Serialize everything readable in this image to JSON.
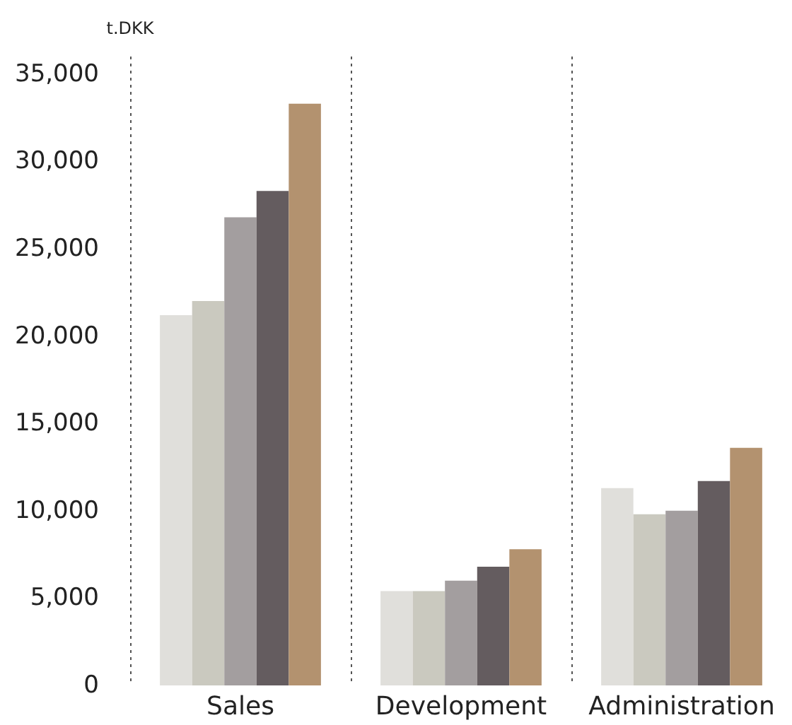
{
  "chart_data": {
    "type": "bar",
    "ylabel": "t.DKK",
    "categories": [
      "Sales",
      "Development",
      "Administration"
    ],
    "series": [
      {
        "color": "#e0dfdb",
        "values": [
          21200,
          5400,
          11300
        ]
      },
      {
        "color": "#cac9bf",
        "values": [
          22000,
          5400,
          9800
        ]
      },
      {
        "color": "#a39e9f",
        "values": [
          26800,
          6000,
          10000
        ]
      },
      {
        "color": "#645c5f",
        "values": [
          28300,
          6800,
          11700
        ]
      },
      {
        "color": "#b3926f",
        "values": [
          33300,
          7800,
          13600
        ]
      }
    ],
    "ylim": [
      0,
      36000
    ],
    "yticks": [
      0,
      {
        "value": 5000,
        "label": "5,000"
      },
      {
        "value": 10000,
        "label": "10,000"
      },
      {
        "value": 15000,
        "label": "15,000"
      },
      {
        "value": 20000,
        "label": "20,000"
      },
      {
        "value": 25000,
        "label": "25,000"
      },
      {
        "value": 30000,
        "label": "30,000"
      },
      {
        "value": 35000,
        "label": "35,000"
      }
    ],
    "grid": "x"
  }
}
